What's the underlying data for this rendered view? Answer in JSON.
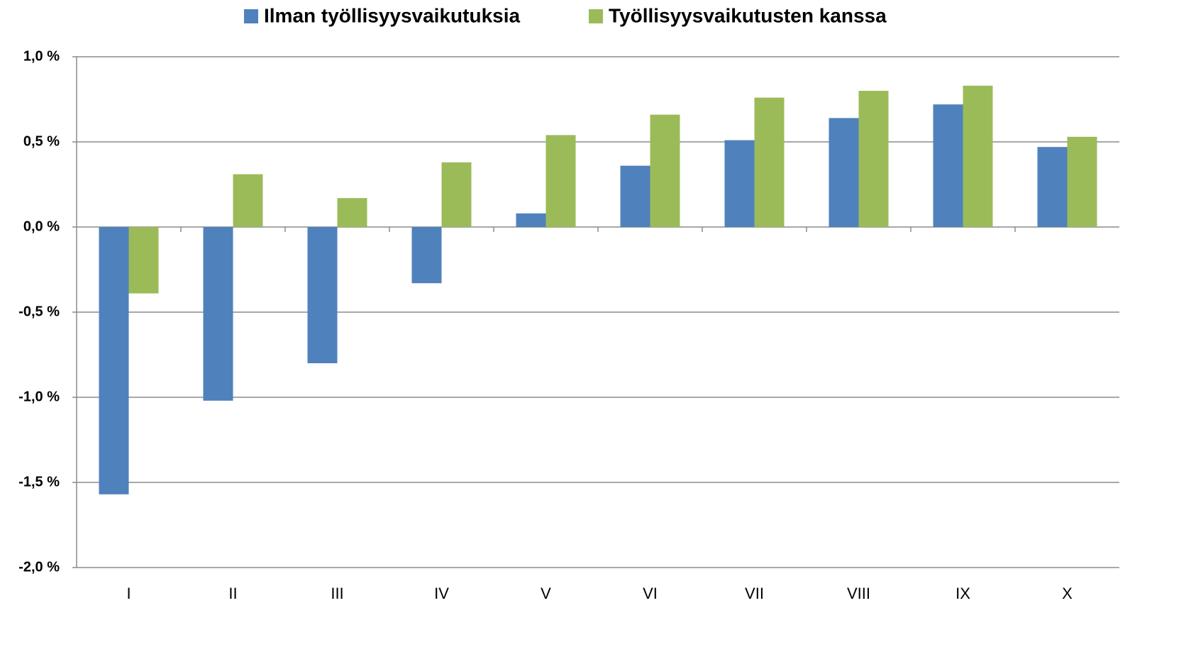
{
  "chart_data": {
    "type": "bar",
    "categories": [
      "I",
      "II",
      "III",
      "IV",
      "V",
      "VI",
      "VII",
      "VIII",
      "IX",
      "X"
    ],
    "series": [
      {
        "name": "Ilman työllisyysvaikutuksia",
        "color": "#4f81bd",
        "values": [
          -1.57,
          -1.02,
          -0.8,
          -0.33,
          0.08,
          0.36,
          0.51,
          0.64,
          0.72,
          0.47
        ]
      },
      {
        "name": "Työllisyysvaikutusten kanssa",
        "color": "#9bbb59",
        "values": [
          -0.39,
          0.31,
          0.17,
          0.38,
          0.54,
          0.66,
          0.76,
          0.8,
          0.83,
          0.53
        ]
      }
    ],
    "ylim": [
      -2.0,
      1.0
    ],
    "yticks": [
      {
        "value": -2.0,
        "label": "-2,0 %"
      },
      {
        "value": -1.5,
        "label": "-1,5 %"
      },
      {
        "value": -1.0,
        "label": "-1,0 %"
      },
      {
        "value": -0.5,
        "label": "-0,5 %"
      },
      {
        "value": 0.0,
        "label": "0,0 %"
      },
      {
        "value": 0.5,
        "label": "0,5 %"
      },
      {
        "value": 1.0,
        "label": "1,0 %"
      }
    ],
    "grid": true,
    "legend": "top"
  }
}
